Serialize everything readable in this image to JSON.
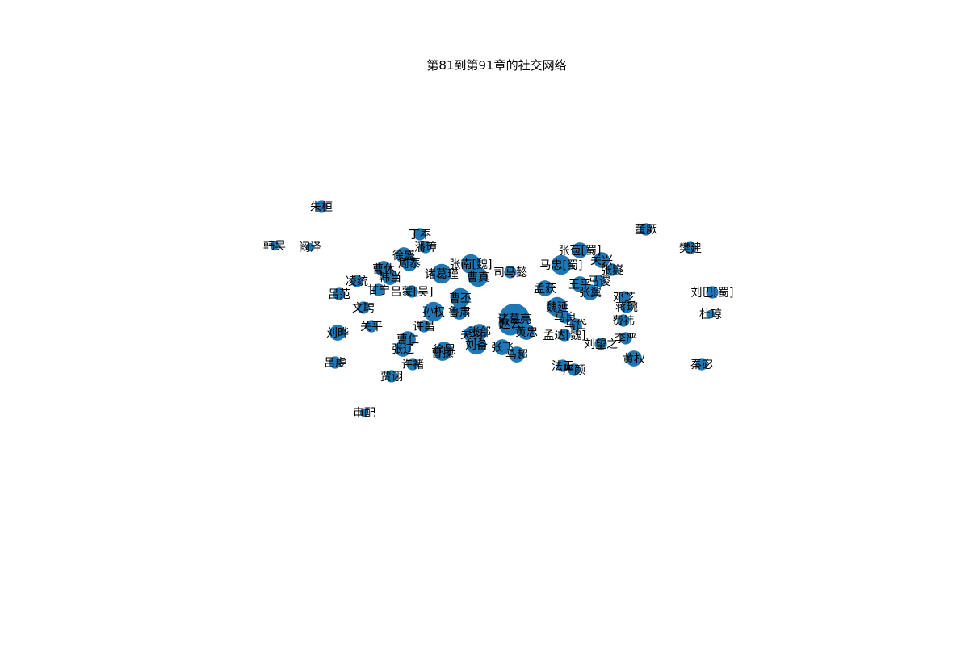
{
  "title": "第81到第91章的社交网络",
  "node_color": "#1f77b4",
  "label_color": "#000000",
  "nodes": [
    {
      "id": "zhuhuan",
      "label": "朱桓",
      "weight": 2
    },
    {
      "id": "dongjue",
      "label": "董厥",
      "weight": 2
    },
    {
      "id": "dingfeng",
      "label": "丁奉",
      "weight": 2
    },
    {
      "id": "hanhao",
      "label": "韩昊",
      "weight": 1
    },
    {
      "id": "junze",
      "label": "阚泽",
      "weight": 1
    },
    {
      "id": "fanjian",
      "label": "樊建",
      "weight": 2
    },
    {
      "id": "pangzhang",
      "label": "潘璋",
      "weight": 2
    },
    {
      "id": "zhangbao",
      "label": "张苞[蜀]",
      "weight": 3
    },
    {
      "id": "xusheng",
      "label": "徐盛",
      "weight": 3
    },
    {
      "id": "guanxing",
      "label": "关兴",
      "weight": 3
    },
    {
      "id": "zhoutai",
      "label": "周泰",
      "weight": 3
    },
    {
      "id": "zhangnan",
      "label": "张南[魏]",
      "weight": 4
    },
    {
      "id": "mazhong",
      "label": "马忠[蜀]",
      "weight": 4
    },
    {
      "id": "zhangyi",
      "label": "张嶷",
      "weight": 2
    },
    {
      "id": "caoxiu",
      "label": "曹休",
      "weight": 3
    },
    {
      "id": "zhuge",
      "label": "诸葛瑾",
      "weight": 4
    },
    {
      "id": "simayi",
      "label": "司马懿",
      "weight": 2
    },
    {
      "id": "handang",
      "label": "韩当",
      "weight": 3
    },
    {
      "id": "caozhen",
      "label": "曹真",
      "weight": 4
    },
    {
      "id": "lingtong",
      "label": "凌统",
      "weight": 2
    },
    {
      "id": "wangping",
      "label": "王平",
      "weight": 3
    },
    {
      "id": "maiao",
      "label": "马谡",
      "weight": 2
    },
    {
      "id": "ganning",
      "label": "甘宁",
      "weight": 2
    },
    {
      "id": "mengda",
      "label": "孟获",
      "weight": 3
    },
    {
      "id": "lvfan",
      "label": "吕范",
      "weight": 2
    },
    {
      "id": "lvmeng",
      "label": "吕蒙[吴]",
      "weight": 2
    },
    {
      "id": "caopi",
      "label": "曹丕",
      "weight": 4
    },
    {
      "id": "zhangyi2",
      "label": "张翼",
      "weight": 3
    },
    {
      "id": "dengzhi",
      "label": "邓芝",
      "weight": 2
    },
    {
      "id": "liubazhu",
      "label": "刘巴[蜀]",
      "weight": 2
    },
    {
      "id": "wenpin",
      "label": "文聘",
      "weight": 2
    },
    {
      "id": "weiyan",
      "label": "魏延",
      "weight": 4
    },
    {
      "id": "jiangwan",
      "label": "蒋琬",
      "weight": 2
    },
    {
      "id": "sunquan",
      "label": "孙权",
      "weight": 4
    },
    {
      "id": "luxun",
      "label": "鲁肃",
      "weight": 3
    },
    {
      "id": "zhugeliang",
      "label": "诸葛亮",
      "weight": 7
    },
    {
      "id": "duqiong",
      "label": "杜琼",
      "weight": 1
    },
    {
      "id": "maliang",
      "label": "马良",
      "weight": 2
    },
    {
      "id": "zhaoyun",
      "label": "赵云",
      "weight": 5
    },
    {
      "id": "feiwei",
      "label": "费祎",
      "weight": 2
    },
    {
      "id": "xuchang",
      "label": "许昌",
      "weight": 2
    },
    {
      "id": "liuye",
      "label": "刘晔",
      "weight": 3
    },
    {
      "id": "guanping",
      "label": "关平",
      "weight": 2
    },
    {
      "id": "zhanghe",
      "label": "张郃",
      "weight": 3
    },
    {
      "id": "huangzhong",
      "label": "黄忠",
      "weight": 3
    },
    {
      "id": "mengdawei",
      "label": "孟达[魏]",
      "weight": 2
    },
    {
      "id": "maliangs",
      "label": "马岱",
      "weight": 2
    },
    {
      "id": "caoren",
      "label": "曹仁",
      "weight": 3
    },
    {
      "id": "liyan",
      "label": "李严",
      "weight": 2
    },
    {
      "id": "liuwangzhi",
      "label": "刘望之",
      "weight": 2
    },
    {
      "id": "xuhuang",
      "label": "徐晃",
      "weight": 3
    },
    {
      "id": "zhangliao",
      "label": "张辽",
      "weight": 3
    },
    {
      "id": "liubei",
      "label": "刘备",
      "weight": 4
    },
    {
      "id": "zhangfei",
      "label": "张飞",
      "weight": 3
    },
    {
      "id": "guanyu",
      "label": "关羽",
      "weight": 3
    },
    {
      "id": "caocao",
      "label": "曹操",
      "weight": 3
    },
    {
      "id": "machao",
      "label": "马超",
      "weight": 3
    },
    {
      "id": "huangquan",
      "label": "黄权",
      "weight": 3
    },
    {
      "id": "lvqian",
      "label": "吕虔",
      "weight": 2
    },
    {
      "id": "qinmi",
      "label": "秦宓",
      "weight": 2
    },
    {
      "id": "fazheng",
      "label": "法正",
      "weight": 2
    },
    {
      "id": "yanyan",
      "label": "严颜",
      "weight": 2
    },
    {
      "id": "xuchu",
      "label": "许褚",
      "weight": 2
    },
    {
      "id": "jiaxu",
      "label": "贾诩",
      "weight": 2
    },
    {
      "id": "shenpei",
      "label": "审配",
      "weight": 1
    }
  ]
}
